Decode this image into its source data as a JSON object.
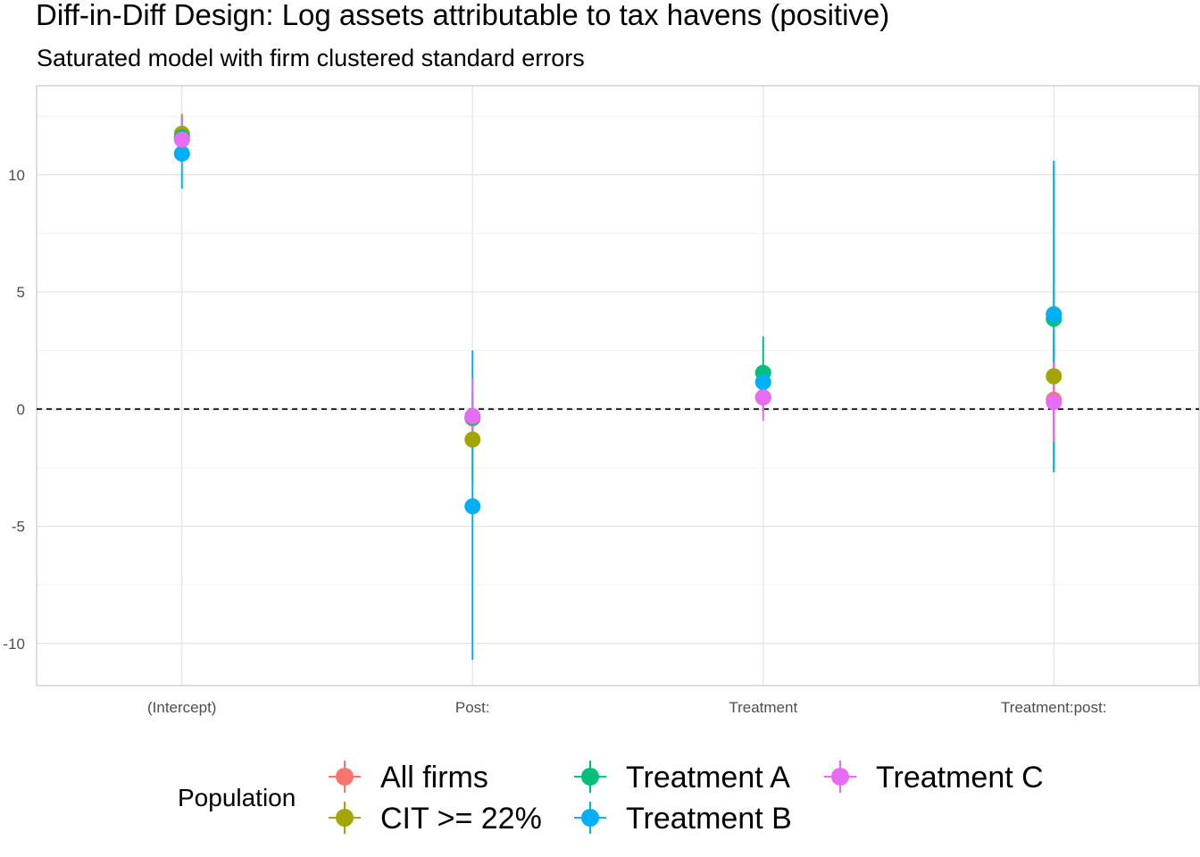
{
  "chart_data": {
    "type": "scatter",
    "title": "Diff-in-Diff Design: Log assets attributable to tax havens (positive)",
    "subtitle": "Saturated model with firm clustered standard errors",
    "xlabel": "",
    "ylabel": "",
    "categories": [
      "(Intercept)",
      "Post:",
      "Treatment",
      "Treatment:post:"
    ],
    "ylim": [
      -11.8,
      13.8
    ],
    "yticks": [
      -10,
      -5,
      0,
      5,
      10
    ],
    "grid": true,
    "reference_line": 0,
    "legend": {
      "title": "Population",
      "placement": "bottom"
    },
    "series": [
      {
        "name": "All firms",
        "color": "#F8766D",
        "estimates": [
          11.6,
          -0.4,
          0.5,
          0.4
        ],
        "lower": [
          10.8,
          -1.5,
          -0.1,
          -0.9
        ],
        "upper": [
          12.4,
          0.7,
          1.1,
          1.7
        ]
      },
      {
        "name": "CIT >= 22%",
        "color": "#A3A500",
        "estimates": [
          11.75,
          -1.3,
          0.5,
          1.4
        ],
        "lower": [
          10.9,
          -3.1,
          -0.1,
          -0.4
        ],
        "upper": [
          12.6,
          0.5,
          1.1,
          3.2
        ]
      },
      {
        "name": "Treatment A",
        "color": "#00BF7D",
        "estimates": [
          11.6,
          -0.35,
          1.55,
          3.85
        ],
        "lower": [
          10.6,
          -1.4,
          0.0,
          -2.7
        ],
        "upper": [
          12.5,
          0.7,
          3.1,
          10.4
        ]
      },
      {
        "name": "Treatment B",
        "color": "#00B0F6",
        "estimates": [
          10.9,
          -4.15,
          1.15,
          4.05
        ],
        "lower": [
          9.4,
          -10.7,
          0.6,
          -2.6
        ],
        "upper": [
          12.4,
          2.5,
          1.7,
          10.6
        ]
      },
      {
        "name": "Treatment C",
        "color": "#E76BF3",
        "estimates": [
          11.5,
          -0.3,
          0.5,
          0.3
        ],
        "lower": [
          10.5,
          -1.3,
          -0.5,
          -1.4
        ],
        "upper": [
          12.5,
          1.3,
          1.5,
          2.0
        ]
      }
    ]
  }
}
